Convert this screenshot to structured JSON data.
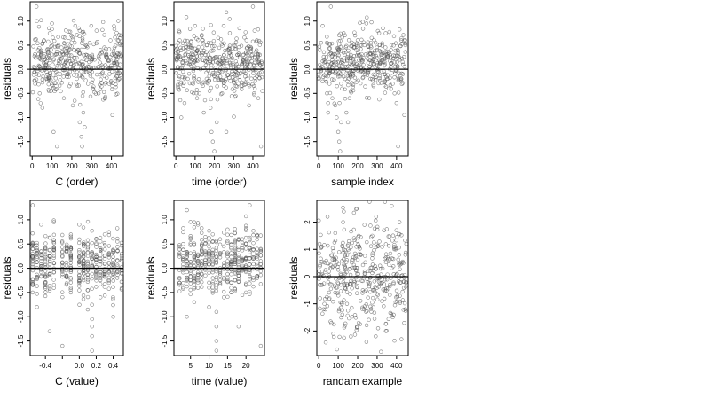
{
  "chart_data": [
    {
      "type": "scatter",
      "xlabel": "C (order)",
      "ylabel": "residuals",
      "xlim": [
        -10,
        460
      ],
      "ylim": [
        -1.8,
        1.4
      ],
      "xticks": [
        0,
        100,
        200,
        300,
        400
      ],
      "xtick_labels": [
        "0",
        "100",
        "200",
        "300",
        "400"
      ],
      "yticks": [
        -1.5,
        -1.0,
        -0.5,
        0.0,
        0.5,
        1.0
      ],
      "ytick_labels": [
        "-1.5",
        "-1.0",
        "-0.5",
        "0.0",
        "0.5",
        "1.0"
      ],
      "hline": 0,
      "n_points": 450,
      "points": [
        [
          8,
          0.05
        ],
        [
          15,
          -0.3
        ],
        [
          22,
          1.3
        ],
        [
          30,
          0.4
        ],
        [
          38,
          -0.5
        ],
        [
          45,
          0.2
        ],
        [
          52,
          -0.8
        ],
        [
          60,
          0.6
        ],
        [
          70,
          0.1
        ],
        [
          78,
          -0.2
        ],
        [
          85,
          0.85
        ],
        [
          95,
          -0.45
        ],
        [
          100,
          0.95
        ],
        [
          108,
          -1.3
        ],
        [
          115,
          0.3
        ],
        [
          125,
          -1.6
        ],
        [
          133,
          0.5
        ],
        [
          142,
          -0.1
        ],
        [
          150,
          0.35
        ],
        [
          160,
          -0.6
        ],
        [
          170,
          0.45
        ],
        [
          178,
          0.0
        ],
        [
          188,
          -0.35
        ],
        [
          198,
          0.7
        ],
        [
          205,
          -0.75
        ],
        [
          215,
          0.55
        ],
        [
          225,
          -0.2
        ],
        [
          235,
          0.85
        ],
        [
          240,
          -1.1
        ],
        [
          248,
          -1.4
        ],
        [
          252,
          -1.6
        ],
        [
          258,
          -0.9
        ],
        [
          265,
          -1.2
        ],
        [
          272,
          0.3
        ],
        [
          282,
          -0.3
        ],
        [
          290,
          0.55
        ],
        [
          298,
          0.9
        ],
        [
          305,
          -0.4
        ],
        [
          315,
          0.2
        ],
        [
          325,
          0.8
        ],
        [
          335,
          -0.5
        ],
        [
          345,
          0.4
        ],
        [
          355,
          0.05
        ],
        [
          365,
          -0.6
        ],
        [
          375,
          0.25
        ],
        [
          388,
          -0.3
        ],
        [
          395,
          0.6
        ],
        [
          405,
          -0.95
        ],
        [
          415,
          0.45
        ],
        [
          425,
          0.15
        ],
        [
          432,
          0.6
        ],
        [
          440,
          -0.2
        ],
        [
          445,
          0.35
        ],
        [
          450,
          0.5
        ]
      ]
    },
    {
      "type": "scatter",
      "xlabel": "time (order)",
      "ylabel": "residuals",
      "xlim": [
        -10,
        460
      ],
      "ylim": [
        -1.8,
        1.4
      ],
      "xticks": [
        0,
        100,
        200,
        300,
        400
      ],
      "xtick_labels": [
        "0",
        "100",
        "200",
        "300",
        "400"
      ],
      "yticks": [
        -1.5,
        -1.0,
        -0.5,
        0.0,
        0.5,
        1.0
      ],
      "ytick_labels": [
        "-1.5",
        "-1.0",
        "-0.5",
        "0.0",
        "0.5",
        "1.0"
      ],
      "hline": 0,
      "n_points": 450,
      "points": [
        [
          5,
          0.2
        ],
        [
          12,
          -0.4
        ],
        [
          20,
          0.6
        ],
        [
          28,
          -1.0
        ],
        [
          35,
          0.15
        ],
        [
          45,
          -0.7
        ],
        [
          55,
          0.45
        ],
        [
          62,
          -0.2
        ],
        [
          70,
          0.5
        ],
        [
          80,
          0.1
        ],
        [
          90,
          -0.3
        ],
        [
          100,
          0.9
        ],
        [
          110,
          -0.6
        ],
        [
          118,
          0.35
        ],
        [
          128,
          0.0
        ],
        [
          138,
          0.6
        ],
        [
          145,
          -0.9
        ],
        [
          152,
          0.3
        ],
        [
          160,
          -0.2
        ],
        [
          170,
          0.55
        ],
        [
          180,
          -0.8
        ],
        [
          185,
          -1.3
        ],
        [
          192,
          -1.5
        ],
        [
          200,
          -1.7
        ],
        [
          205,
          0.25
        ],
        [
          212,
          -1.1
        ],
        [
          220,
          0.65
        ],
        [
          230,
          0.1
        ],
        [
          240,
          -0.5
        ],
        [
          248,
          0.9
        ],
        [
          255,
          -0.25
        ],
        [
          262,
          -1.3
        ],
        [
          270,
          0.4
        ],
        [
          280,
          0.75
        ],
        [
          290,
          -0.1
        ],
        [
          300,
          0.5
        ],
        [
          310,
          -0.55
        ],
        [
          320,
          0.3
        ],
        [
          330,
          0.85
        ],
        [
          340,
          -0.35
        ],
        [
          350,
          0.2
        ],
        [
          360,
          -0.15
        ],
        [
          370,
          0.45
        ],
        [
          380,
          -0.75
        ],
        [
          390,
          0.1
        ],
        [
          400,
          1.3
        ],
        [
          410,
          -0.4
        ],
        [
          420,
          0.6
        ],
        [
          428,
          -0.6
        ],
        [
          436,
          0.3
        ],
        [
          442,
          -1.6
        ],
        [
          448,
          0.05
        ]
      ]
    },
    {
      "type": "scatter",
      "xlabel": "sample index",
      "ylabel": "residuals",
      "xlim": [
        -10,
        460
      ],
      "ylim": [
        -1.8,
        1.4
      ],
      "xticks": [
        0,
        100,
        200,
        300,
        400
      ],
      "xtick_labels": [
        "0",
        "100",
        "200",
        "300",
        "400"
      ],
      "yticks": [
        -1.5,
        -1.0,
        -0.5,
        0.0,
        0.5,
        1.0
      ],
      "ytick_labels": [
        "-1.5",
        "-1.0",
        "-0.5",
        "0.0",
        "0.5",
        "1.0"
      ],
      "hline": 0,
      "n_points": 450,
      "points": [
        [
          5,
          0.4
        ],
        [
          12,
          0.55
        ],
        [
          20,
          0.9
        ],
        [
          28,
          0.2
        ],
        [
          35,
          -0.2
        ],
        [
          42,
          -0.5
        ],
        [
          48,
          -0.9
        ],
        [
          55,
          -0.3
        ],
        [
          62,
          1.3
        ],
        [
          70,
          -0.6
        ],
        [
          78,
          0.1
        ],
        [
          85,
          -0.75
        ],
        [
          92,
          -1.0
        ],
        [
          100,
          -1.3
        ],
        [
          105,
          -1.5
        ],
        [
          110,
          -1.7
        ],
        [
          115,
          -1.1
        ],
        [
          120,
          -0.4
        ],
        [
          128,
          0.75
        ],
        [
          135,
          -0.2
        ],
        [
          142,
          -0.9
        ],
        [
          150,
          -1.1
        ],
        [
          158,
          -0.6
        ],
        [
          165,
          0.3
        ],
        [
          172,
          -0.1
        ],
        [
          180,
          0.45
        ],
        [
          190,
          0.0
        ],
        [
          200,
          0.6
        ],
        [
          210,
          0.1
        ],
        [
          218,
          -0.05
        ],
        [
          225,
          0.2
        ],
        [
          235,
          0.5
        ],
        [
          245,
          0.95
        ],
        [
          252,
          0.3
        ],
        [
          262,
          0.05
        ],
        [
          272,
          0.65
        ],
        [
          282,
          0.2
        ],
        [
          292,
          0.55
        ],
        [
          300,
          0.4
        ],
        [
          310,
          0.75
        ],
        [
          320,
          0.3
        ],
        [
          330,
          0.85
        ],
        [
          340,
          0.1
        ],
        [
          350,
          -0.2
        ],
        [
          360,
          -0.4
        ],
        [
          370,
          0.25
        ],
        [
          380,
          -0.3
        ],
        [
          390,
          -0.5
        ],
        [
          400,
          -0.7
        ],
        [
          408,
          -1.6
        ],
        [
          416,
          0.2
        ],
        [
          425,
          0.6
        ],
        [
          432,
          -0.1
        ],
        [
          440,
          -0.95
        ],
        [
          446,
          0.5
        ]
      ]
    },
    {
      "type": "scatter",
      "xlabel": "C (value)",
      "ylabel": "residuals",
      "xlim": [
        -0.58,
        0.52
      ],
      "ylim": [
        -1.8,
        1.4
      ],
      "xticks": [
        -0.4,
        -0.2,
        0.0,
        0.2,
        0.4
      ],
      "xtick_labels": [
        "-0.4",
        "",
        "0.0",
        "0.2",
        "0.4"
      ],
      "yticks": [
        -1.5,
        -1.0,
        -0.5,
        0.0,
        0.5,
        1.0
      ],
      "ytick_labels": [
        "-1.5",
        "-1.0",
        "-0.5",
        "0.0",
        "0.5",
        "1.0"
      ],
      "hline": 0,
      "n_points": 450,
      "columns_x": [
        -0.55,
        -0.5,
        -0.45,
        -0.4,
        -0.35,
        -0.3,
        -0.2,
        -0.15,
        -0.1,
        0.0,
        0.05,
        0.1,
        0.15,
        0.2,
        0.25,
        0.3,
        0.35,
        0.4,
        0.45,
        0.5
      ],
      "points": [
        [
          -0.55,
          1.3
        ],
        [
          -0.5,
          -0.8
        ],
        [
          -0.45,
          0.9
        ],
        [
          -0.4,
          -0.35
        ],
        [
          -0.35,
          -1.3
        ],
        [
          -0.3,
          0.95
        ],
        [
          -0.2,
          -1.6
        ],
        [
          -0.15,
          0.4
        ],
        [
          -0.1,
          -0.5
        ],
        [
          0.0,
          0.9
        ],
        [
          0.05,
          -0.2
        ],
        [
          0.1,
          -0.85
        ],
        [
          0.15,
          -1.05
        ],
        [
          0.15,
          -1.2
        ],
        [
          0.15,
          -1.4
        ],
        [
          0.15,
          -1.7
        ],
        [
          0.2,
          0.6
        ],
        [
          0.25,
          -0.6
        ],
        [
          0.3,
          0.7
        ],
        [
          0.35,
          -0.3
        ],
        [
          0.4,
          -1.0
        ],
        [
          0.45,
          0.55
        ],
        [
          0.5,
          0.3
        ]
      ]
    },
    {
      "type": "scatter",
      "xlabel": "time (value)",
      "ylabel": "residuals",
      "xlim": [
        0.5,
        25
      ],
      "ylim": [
        -1.8,
        1.4
      ],
      "xticks": [
        5,
        10,
        15,
        20
      ],
      "xtick_labels": [
        "5",
        "10",
        "15",
        "20"
      ],
      "yticks": [
        -1.5,
        -1.0,
        -0.5,
        0.0,
        0.5,
        1.0
      ],
      "ytick_labels": [
        "-1.5",
        "-1.0",
        "-0.5",
        "0.0",
        "0.5",
        "1.0"
      ],
      "hline": 0,
      "n_points": 450,
      "columns_x": [
        2,
        3,
        4,
        5,
        6,
        7,
        8,
        9,
        10,
        11,
        12,
        13,
        14,
        15,
        16,
        17,
        18,
        19,
        20,
        21,
        22,
        23,
        24
      ],
      "points": [
        [
          2,
          -0.3
        ],
        [
          3,
          0.5
        ],
        [
          4,
          -1.0
        ],
        [
          5,
          0.6
        ],
        [
          6,
          -0.7
        ],
        [
          7,
          0.9
        ],
        [
          8,
          -0.2
        ],
        [
          9,
          0.5
        ],
        [
          10,
          -0.4
        ],
        [
          11,
          0.7
        ],
        [
          12,
          -1.2
        ],
        [
          12,
          -1.5
        ],
        [
          12,
          -1.7
        ],
        [
          12,
          -0.9
        ],
        [
          13,
          0.3
        ],
        [
          14,
          -0.6
        ],
        [
          15,
          0.8
        ],
        [
          16,
          -0.3
        ],
        [
          17,
          0.4
        ],
        [
          18,
          -1.2
        ],
        [
          19,
          0.6
        ],
        [
          20,
          -0.5
        ],
        [
          21,
          1.3
        ],
        [
          22,
          -0.2
        ],
        [
          23,
          0.4
        ],
        [
          24,
          -1.6
        ]
      ]
    },
    {
      "type": "scatter",
      "xlabel": "randam example",
      "ylabel": "residuals",
      "xlim": [
        -10,
        460
      ],
      "ylim": [
        -2.9,
        2.8
      ],
      "xticks": [
        0,
        100,
        200,
        300,
        400
      ],
      "xtick_labels": [
        "0",
        "100",
        "200",
        "300",
        "400"
      ],
      "yticks": [
        -2,
        -1,
        0,
        1,
        2
      ],
      "ytick_labels": [
        "-2",
        "-1",
        "0",
        "1",
        "2"
      ],
      "hline": 0,
      "n_points": 450,
      "points": [
        [
          5,
          -0.3
        ],
        [
          15,
          1.1
        ],
        [
          25,
          -1.2
        ],
        [
          35,
          0.5
        ],
        [
          45,
          2.2
        ],
        [
          55,
          -0.8
        ],
        [
          65,
          0.3
        ],
        [
          75,
          -2.1
        ],
        [
          85,
          1.6
        ],
        [
          95,
          -0.4
        ],
        [
          105,
          0.9
        ],
        [
          115,
          -1.5
        ],
        [
          125,
          2.0
        ],
        [
          135,
          0.1
        ],
        [
          145,
          -1.0
        ],
        [
          155,
          1.3
        ],
        [
          165,
          -2.2
        ],
        [
          175,
          0.6
        ],
        [
          185,
          -0.2
        ],
        [
          195,
          2.5
        ],
        [
          205,
          -1.7
        ],
        [
          215,
          0.8
        ],
        [
          225,
          -0.6
        ],
        [
          235,
          1.9
        ],
        [
          245,
          -2.4
        ],
        [
          255,
          0.2
        ],
        [
          265,
          -1.1
        ],
        [
          275,
          1.5
        ],
        [
          285,
          -0.5
        ],
        [
          295,
          2.2
        ],
        [
          305,
          -1.9
        ],
        [
          315,
          0.4
        ],
        [
          325,
          -0.9
        ],
        [
          335,
          1.7
        ],
        [
          345,
          -2.0
        ],
        [
          355,
          0.7
        ],
        [
          365,
          -0.3
        ],
        [
          375,
          2.6
        ],
        [
          385,
          -1.4
        ],
        [
          395,
          1.0
        ],
        [
          405,
          -0.7
        ],
        [
          415,
          2.0
        ],
        [
          425,
          -2.3
        ],
        [
          435,
          0.5
        ],
        [
          445,
          -1.2
        ],
        [
          450,
          1.2
        ]
      ]
    }
  ]
}
